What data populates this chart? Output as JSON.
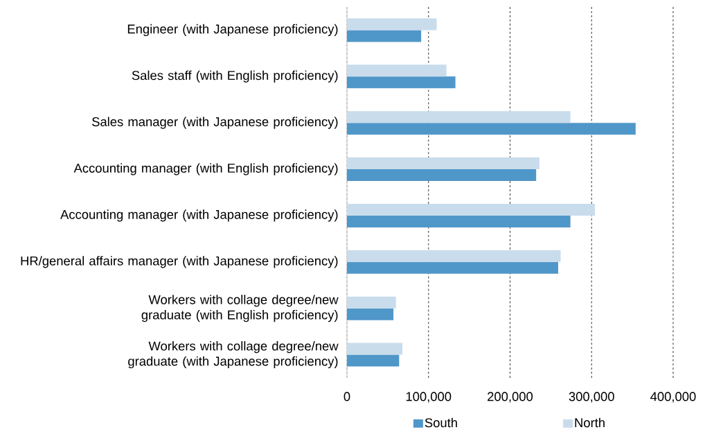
{
  "chart_data": {
    "type": "bar",
    "orientation": "horizontal",
    "categories": [
      "Engineer (with Japanese proficiency)",
      "Sales staff (with English proficiency)",
      "Sales manager (with Japanese proficiency)",
      "Accounting manager (with English proficiency)",
      "Accounting manager (with Japanese proficiency)",
      "HR/general affairs manager (with Japanese proficiency)",
      "Workers with collage degree/new graduate (with English proficiency)",
      "Workers with collage degree/new graduate (with Japanese proficiency)"
    ],
    "series": [
      {
        "name": "South",
        "color": "#5097c9",
        "values": [
          91000,
          133000,
          354000,
          232000,
          274000,
          259000,
          57000,
          64000
        ]
      },
      {
        "name": "North",
        "color": "#c9dcec",
        "values": [
          110000,
          122000,
          274000,
          236000,
          304000,
          262000,
          60000,
          68000
        ]
      }
    ],
    "xlim": [
      0,
      400000
    ],
    "xticks": [
      0,
      {
        "value": 100000,
        "label": "100,000"
      },
      {
        "value": 200000,
        "label": "200,000"
      },
      {
        "value": 300000,
        "label": "300,000"
      },
      {
        "value": 400000,
        "label": "400,000"
      }
    ],
    "grid": "x",
    "legend": "bottom"
  }
}
